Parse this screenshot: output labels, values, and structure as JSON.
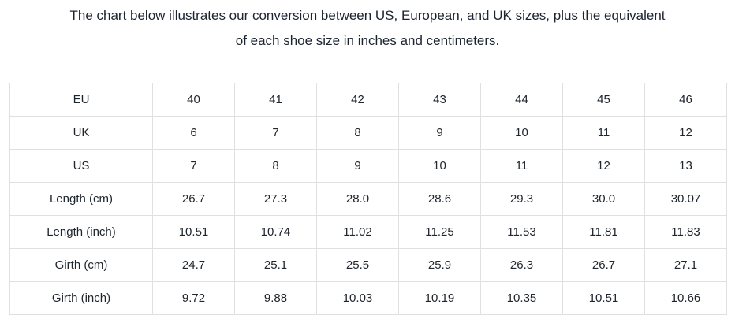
{
  "title_line1": "The chart below illustrates our conversion between US, European, and UK sizes, plus the equivalent",
  "title_line2": "of each shoe size in inches and centimeters.",
  "colors": {
    "background": "#ffffff",
    "text": "#20262d",
    "title_text": "#1c2430",
    "table_border": "#e0e0e0"
  },
  "chart_data": {
    "type": "table",
    "title": "The chart below illustrates our conversion between US, European, and UK sizes, plus the equivalent of each shoe size in inches and centimeters.",
    "rows": [
      {
        "label": "EU",
        "values": [
          "40",
          "41",
          "42",
          "43",
          "44",
          "45",
          "46"
        ]
      },
      {
        "label": "UK",
        "values": [
          "6",
          "7",
          "8",
          "9",
          "10",
          "11",
          "12"
        ]
      },
      {
        "label": "US",
        "values": [
          "7",
          "8",
          "9",
          "10",
          "11",
          "12",
          "13"
        ]
      },
      {
        "label": "Length (cm)",
        "values": [
          "26.7",
          "27.3",
          "28.0",
          "28.6",
          "29.3",
          "30.0",
          "30.07"
        ]
      },
      {
        "label": "Length (inch)",
        "values": [
          "10.51",
          "10.74",
          "11.02",
          "11.25",
          "11.53",
          "11.81",
          "11.83"
        ]
      },
      {
        "label": "Girth (cm)",
        "values": [
          "24.7",
          "25.1",
          "25.5",
          "25.9",
          "26.3",
          "26.7",
          "27.1"
        ]
      },
      {
        "label": "Girth (inch)",
        "values": [
          "9.72",
          "9.88",
          "10.03",
          "10.19",
          "10.35",
          "10.51",
          "10.66"
        ]
      }
    ]
  }
}
